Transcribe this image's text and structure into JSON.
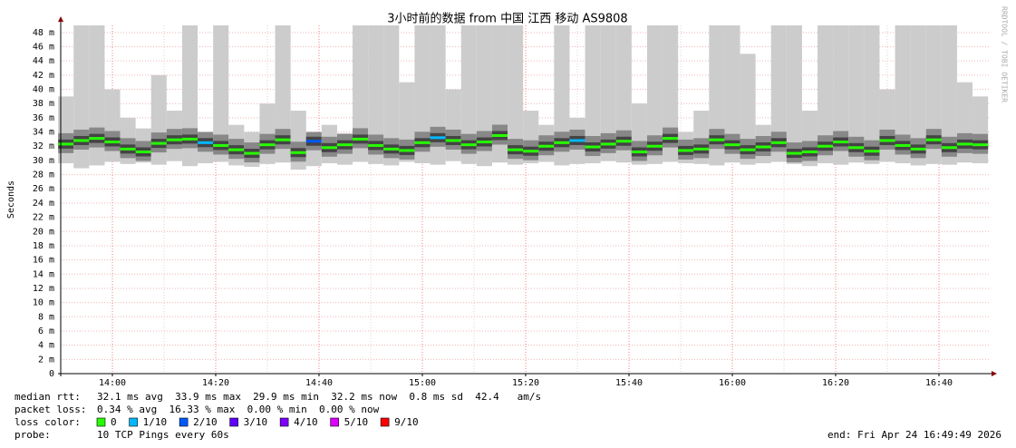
{
  "chart_data": {
    "type": "smokeping",
    "title": "3小时前的数据 from 中国 江西 移动 AS9808",
    "y_label": "Seconds",
    "watermark": "RRDTOOL / TOBI OETIKER",
    "xlim": [
      "13:50",
      "16:50"
    ],
    "xticks": [
      "14:00",
      "14:20",
      "14:40",
      "15:00",
      "15:20",
      "15:40",
      "16:00",
      "16:20",
      "16:40"
    ],
    "ylim": [
      0,
      0.049
    ],
    "yticks": [
      0,
      {
        "value": 0.002,
        "label": "2 m"
      },
      {
        "value": 0.004,
        "label": "4 m"
      },
      {
        "value": 0.006,
        "label": "6 m"
      },
      {
        "value": 0.008,
        "label": "8 m"
      },
      {
        "value": 0.01,
        "label": "10 m"
      },
      {
        "value": 0.012,
        "label": "12 m"
      },
      {
        "value": 0.014,
        "label": "14 m"
      },
      {
        "value": 0.016,
        "label": "16 m"
      },
      {
        "value": 0.018,
        "label": "18 m"
      },
      {
        "value": 0.02,
        "label": "20 m"
      },
      {
        "value": 0.022,
        "label": "22 m"
      },
      {
        "value": 0.024,
        "label": "24 m"
      },
      {
        "value": 0.026,
        "label": "26 m"
      },
      {
        "value": 0.028,
        "label": "28 m"
      },
      {
        "value": 0.03,
        "label": "30 m"
      },
      {
        "value": 0.032,
        "label": "32 m"
      },
      {
        "value": 0.034,
        "label": "34 m"
      },
      {
        "value": 0.036,
        "label": "36 m"
      },
      {
        "value": 0.038,
        "label": "38 m"
      },
      {
        "value": 0.04,
        "label": "40 m"
      },
      {
        "value": 0.042,
        "label": "42 m"
      },
      {
        "value": 0.044,
        "label": "44 m"
      },
      {
        "value": 0.046,
        "label": "46 m"
      },
      {
        "value": 0.048,
        "label": "48 m"
      }
    ],
    "grid": true,
    "color": "#26ff00",
    "smoke_color": "#cccccc",
    "x": [
      "13:51",
      "13:54",
      "13:57",
      "14:00",
      "14:03",
      "14:06",
      "14:09",
      "14:12",
      "14:15",
      "14:18",
      "14:21",
      "14:24",
      "14:27",
      "14:30",
      "14:33",
      "14:36",
      "14:39",
      "14:42",
      "14:45",
      "14:48",
      "14:51",
      "14:54",
      "14:57",
      "15:00",
      "15:03",
      "15:06",
      "15:09",
      "15:12",
      "15:15",
      "15:18",
      "15:21",
      "15:24",
      "15:27",
      "15:30",
      "15:33",
      "15:36",
      "15:39",
      "15:42",
      "15:45",
      "15:48",
      "15:51",
      "15:54",
      "15:57",
      "16:00",
      "16:03",
      "16:06",
      "16:09",
      "16:12",
      "16:15",
      "16:18",
      "16:21",
      "16:24",
      "16:27",
      "16:30",
      "16:33",
      "16:36",
      "16:39",
      "16:42",
      "16:45",
      "16:48"
    ],
    "values": [
      0.0323,
      0.0328,
      0.0331,
      0.0326,
      0.0316,
      0.0312,
      0.0324,
      0.0329,
      0.033,
      0.0325,
      0.0321,
      0.0315,
      0.031,
      0.0322,
      0.0329,
      0.0311,
      0.0327,
      0.0318,
      0.0322,
      0.033,
      0.0321,
      0.0316,
      0.0314,
      0.0325,
      0.0332,
      0.0328,
      0.0322,
      0.0326,
      0.0335,
      0.0315,
      0.0313,
      0.032,
      0.0325,
      0.0328,
      0.0319,
      0.0323,
      0.0327,
      0.0312,
      0.032,
      0.0331,
      0.0314,
      0.0316,
      0.0329,
      0.0322,
      0.0315,
      0.0319,
      0.0325,
      0.031,
      0.0312,
      0.032,
      0.0326,
      0.0318,
      0.0313,
      0.0328,
      0.0321,
      0.0316,
      0.0329,
      0.0318,
      0.0323,
      0.0322
    ],
    "smoke_low": [
      0.0296,
      0.0289,
      0.0293,
      0.0298,
      0.0295,
      0.0297,
      0.0294,
      0.0299,
      0.0292,
      0.0296,
      0.0298,
      0.0293,
      0.0291,
      0.0295,
      0.0297,
      0.0287,
      0.0292,
      0.0296,
      0.0294,
      0.0298,
      0.0295,
      0.0293,
      0.0298,
      0.0296,
      0.0294,
      0.0299,
      0.0295,
      0.0292,
      0.0297,
      0.0294,
      0.0296,
      0.0298,
      0.0293,
      0.0295,
      0.0296,
      0.0299,
      0.0297,
      0.0294,
      0.0295,
      0.0298,
      0.0296,
      0.0295,
      0.0293,
      0.0297,
      0.0294,
      0.0296,
      0.0298,
      0.0295,
      0.0292,
      0.0296,
      0.0294,
      0.0297,
      0.0295,
      0.0298,
      0.0296,
      0.0293,
      0.0295,
      0.0294,
      0.0297,
      0.0296
    ],
    "smoke_high": [
      0.039,
      0.049,
      0.049,
      0.04,
      0.036,
      0.0345,
      0.042,
      0.037,
      0.049,
      0.034,
      0.049,
      0.035,
      0.034,
      0.038,
      0.049,
      0.037,
      0.034,
      0.035,
      0.0338,
      0.049,
      0.049,
      0.049,
      0.041,
      0.049,
      0.049,
      0.04,
      0.049,
      0.049,
      0.049,
      0.049,
      0.037,
      0.035,
      0.049,
      0.036,
      0.049,
      0.049,
      0.049,
      0.038,
      0.049,
      0.049,
      0.034,
      0.037,
      0.049,
      0.049,
      0.045,
      0.035,
      0.049,
      0.049,
      0.037,
      0.049,
      0.049,
      0.049,
      0.049,
      0.04,
      0.049,
      0.049,
      0.049,
      0.049,
      0.041,
      0.039
    ],
    "loss": [
      0,
      0,
      0,
      0,
      0,
      0,
      0,
      0,
      0,
      1,
      0,
      0,
      0,
      0,
      0,
      0,
      2,
      0,
      0,
      0,
      0,
      0,
      0,
      0,
      1,
      0,
      0,
      0,
      0,
      0,
      0,
      0,
      0,
      1,
      0,
      0,
      0,
      0,
      0,
      0,
      0,
      0,
      0,
      0,
      0,
      0,
      0,
      0,
      0,
      0,
      0,
      0,
      0,
      0,
      0,
      0,
      0,
      0,
      0,
      0
    ]
  },
  "stats": [
    {
      "label": "median rtt:",
      "text": "32.1 ms avg  33.9 ms max  29.9 ms min  32.2 ms now  0.8 ms sd  42.4   am/s"
    },
    {
      "label": "packet loss:",
      "text": "0.34 % avg  16.33 % max  0.00 % min  0.00 % now"
    }
  ],
  "loss_colors": {
    "label": "loss color:",
    "items": [
      {
        "label": "0",
        "color": "#26ff00"
      },
      {
        "label": "1/10",
        "color": "#00b8ff"
      },
      {
        "label": "2/10",
        "color": "#0059ff"
      },
      {
        "label": "3/10",
        "color": "#5e00ff"
      },
      {
        "label": "4/10",
        "color": "#7e00ff"
      },
      {
        "label": "5/10",
        "color": "#dd00ff"
      },
      {
        "label": "9/10",
        "color": "#ff0000"
      }
    ]
  },
  "probe": {
    "label": "probe:",
    "text": "10 TCP Pings every 60s"
  },
  "end": "end: Fri Apr 24 16:49:49 2026"
}
